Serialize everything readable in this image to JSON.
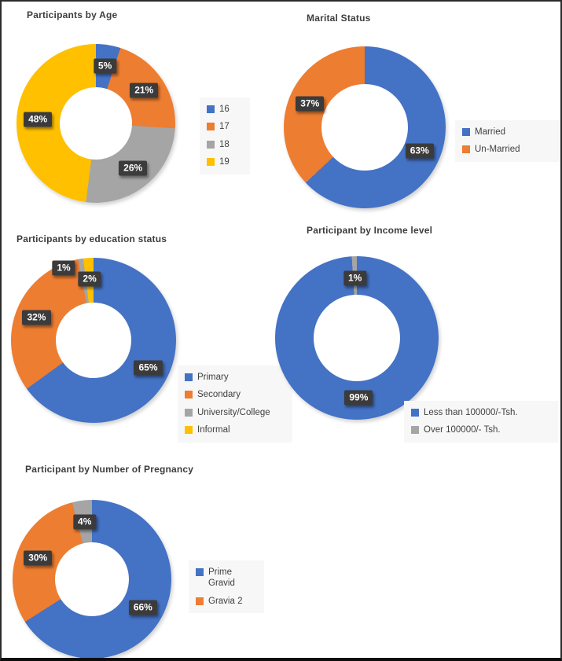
{
  "palette": {
    "blue": "#4472C4",
    "orange": "#ED7D31",
    "gray": "#A5A5A5",
    "yellow": "#FFC000",
    "label_box": "#3B3B3B",
    "label_text": "#FFFFFF",
    "title_color": "#3D3D3D",
    "legend_bg": "#F7F7F7",
    "legend_text": "#404040"
  },
  "chart_data": [
    {
      "type": "pie",
      "subtype": "donut",
      "title": "Participants by Age",
      "legend_position": "right",
      "slices": [
        {
          "name": "16",
          "value": 5,
          "data_label": "5%",
          "color": "blue"
        },
        {
          "name": "17",
          "value": 21,
          "data_label": "21%",
          "color": "orange"
        },
        {
          "name": "18",
          "value": 26,
          "data_label": "26%",
          "color": "gray"
        },
        {
          "name": "19",
          "value": 48,
          "data_label": "48%",
          "color": "yellow"
        }
      ],
      "legend_entries": [
        {
          "label": "16",
          "color": "blue"
        },
        {
          "label": "17",
          "color": "orange"
        },
        {
          "label": "18",
          "color": "gray"
        },
        {
          "label": "19",
          "color": "yellow"
        }
      ]
    },
    {
      "type": "pie",
      "subtype": "donut",
      "title": "Marital Status",
      "legend_position": "right",
      "slices": [
        {
          "name": "Married",
          "value": 63,
          "data_label": "63%",
          "color": "blue"
        },
        {
          "name": "Un-Married",
          "value": 37,
          "data_label": "37%",
          "color": "orange"
        }
      ],
      "legend_entries": [
        {
          "label": "Married",
          "color": "blue"
        },
        {
          "label": "Un-Married",
          "color": "orange"
        }
      ]
    },
    {
      "type": "pie",
      "subtype": "donut",
      "title": "Participants by education status",
      "legend_position": "right",
      "slices": [
        {
          "name": "Primary",
          "value": 65,
          "data_label": "65%",
          "color": "blue"
        },
        {
          "name": "Secondary",
          "value": 32,
          "data_label": "32%",
          "color": "orange"
        },
        {
          "name": "University/College",
          "value": 1,
          "data_label": "1%",
          "color": "gray"
        },
        {
          "name": "Informal",
          "value": 2,
          "data_label": "2%",
          "color": "yellow"
        }
      ],
      "legend_entries": [
        {
          "label": "Primary",
          "color": "blue"
        },
        {
          "label": "Secondary",
          "color": "orange"
        },
        {
          "label": "University/College",
          "color": "gray"
        },
        {
          "label": "Informal",
          "color": "yellow"
        }
      ]
    },
    {
      "type": "pie",
      "subtype": "donut",
      "title": "Participant by Income level",
      "legend_position": "bottom-right",
      "slices": [
        {
          "name": "Less than 100000/-Tsh.",
          "value": 99,
          "data_label": "99%",
          "color": "blue"
        },
        {
          "name": "Over 100000/- Tsh.",
          "value": 1,
          "data_label": "1%",
          "color": "gray"
        }
      ],
      "legend_entries": [
        {
          "label": "Less than 100000/-Tsh.",
          "color": "blue"
        },
        {
          "label": "Over 100000/- Tsh.",
          "color": "gray"
        }
      ]
    },
    {
      "type": "pie",
      "subtype": "donut",
      "title": "Participant by Number of Pregnancy",
      "legend_position": "right",
      "slices": [
        {
          "name": "Prime Gravid",
          "value": 66,
          "data_label": "66%",
          "color": "blue"
        },
        {
          "name": "Gravia 2",
          "value": 30,
          "data_label": "30%",
          "color": "orange"
        },
        {
          "name": "",
          "value": 4,
          "data_label": "4%",
          "color": "gray"
        }
      ],
      "legend_entries": [
        {
          "label": "Prime Gravid",
          "color": "blue"
        },
        {
          "label": "Gravia 2",
          "color": "orange"
        }
      ]
    }
  ]
}
